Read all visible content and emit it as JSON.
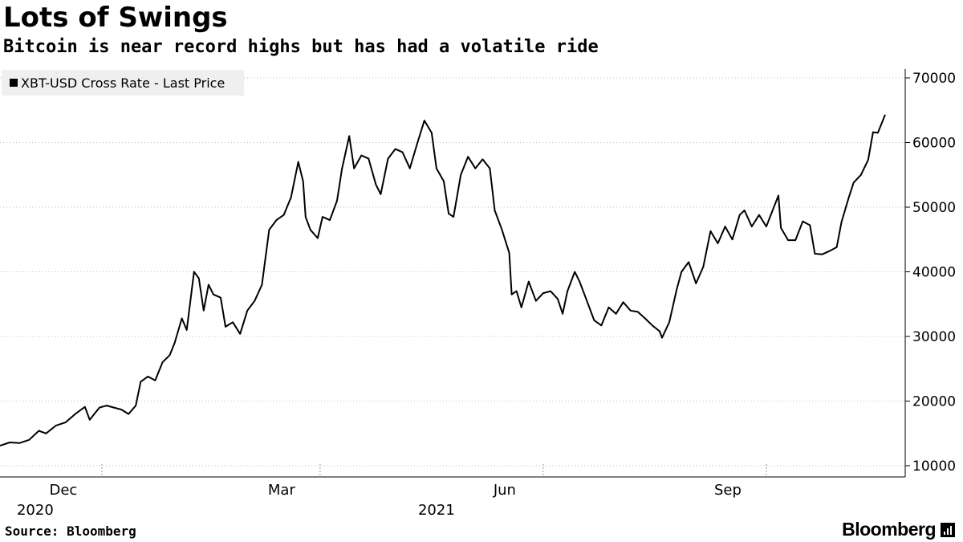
{
  "title": "Lots of Swings",
  "subtitle": "Bitcoin is near record highs but has had a volatile ride",
  "source": "Source: Bloomberg",
  "brand": "Bloomberg",
  "chart_data": {
    "type": "line",
    "legend": "XBT-USD Cross Rate - Last Price",
    "legend_position": "top-left",
    "y_axis_side": "right",
    "ylim": [
      10000,
      70000
    ],
    "y_ticks": [
      10000,
      20000,
      30000,
      40000,
      50000,
      60000,
      70000
    ],
    "x_tick_labels": [
      "Dec",
      "Mar",
      "Jun",
      "Sep"
    ],
    "x_tick_dates": [
      "2020-12-01",
      "2021-03-01",
      "2021-06-01",
      "2021-09-01"
    ],
    "year_labels": [
      {
        "label": "2020",
        "date": "2020-11-30"
      },
      {
        "label": "2021",
        "date": "2021-03-01"
      }
    ],
    "x_range": [
      "2020-10-20",
      "2021-10-20"
    ],
    "grid": "horizontal dotted",
    "series": [
      {
        "color": "#000000",
        "points": [
          [
            "2020-10-20",
            13100
          ],
          [
            "2020-10-24",
            13600
          ],
          [
            "2020-10-28",
            13500
          ],
          [
            "2020-11-01",
            14000
          ],
          [
            "2020-11-05",
            15400
          ],
          [
            "2020-11-08",
            15000
          ],
          [
            "2020-11-12",
            16200
          ],
          [
            "2020-11-16",
            16700
          ],
          [
            "2020-11-20",
            18000
          ],
          [
            "2020-11-24",
            19100
          ],
          [
            "2020-11-26",
            17100
          ],
          [
            "2020-11-30",
            19000
          ],
          [
            "2020-12-03",
            19300
          ],
          [
            "2020-12-06",
            19000
          ],
          [
            "2020-12-09",
            18700
          ],
          [
            "2020-12-12",
            18000
          ],
          [
            "2020-12-15",
            19300
          ],
          [
            "2020-12-17",
            23000
          ],
          [
            "2020-12-20",
            23800
          ],
          [
            "2020-12-23",
            23200
          ],
          [
            "2020-12-26",
            26000
          ],
          [
            "2020-12-29",
            27100
          ],
          [
            "2020-12-31",
            29000
          ],
          [
            "2021-01-03",
            32800
          ],
          [
            "2021-01-05",
            31000
          ],
          [
            "2021-01-08",
            40000
          ],
          [
            "2021-01-10",
            39000
          ],
          [
            "2021-01-12",
            34000
          ],
          [
            "2021-01-14",
            38000
          ],
          [
            "2021-01-16",
            36500
          ],
          [
            "2021-01-19",
            36000
          ],
          [
            "2021-01-21",
            31500
          ],
          [
            "2021-01-24",
            32200
          ],
          [
            "2021-01-27",
            30400
          ],
          [
            "2021-01-30",
            34000
          ],
          [
            "2021-02-02",
            35500
          ],
          [
            "2021-02-05",
            38000
          ],
          [
            "2021-02-08",
            46500
          ],
          [
            "2021-02-11",
            48000
          ],
          [
            "2021-02-14",
            48800
          ],
          [
            "2021-02-17",
            51500
          ],
          [
            "2021-02-20",
            57000
          ],
          [
            "2021-02-22",
            54000
          ],
          [
            "2021-02-23",
            48500
          ],
          [
            "2021-02-25",
            46500
          ],
          [
            "2021-02-28",
            45200
          ],
          [
            "2021-03-02",
            48500
          ],
          [
            "2021-03-05",
            48000
          ],
          [
            "2021-03-08",
            51000
          ],
          [
            "2021-03-10",
            55900
          ],
          [
            "2021-03-13",
            61000
          ],
          [
            "2021-03-15",
            56000
          ],
          [
            "2021-03-18",
            58000
          ],
          [
            "2021-03-21",
            57500
          ],
          [
            "2021-03-24",
            53500
          ],
          [
            "2021-03-26",
            52000
          ],
          [
            "2021-03-29",
            57500
          ],
          [
            "2021-04-01",
            59000
          ],
          [
            "2021-04-04",
            58500
          ],
          [
            "2021-04-07",
            56000
          ],
          [
            "2021-04-10",
            59800
          ],
          [
            "2021-04-13",
            63400
          ],
          [
            "2021-04-16",
            61500
          ],
          [
            "2021-04-18",
            56000
          ],
          [
            "2021-04-21",
            54000
          ],
          [
            "2021-04-23",
            49000
          ],
          [
            "2021-04-25",
            48500
          ],
          [
            "2021-04-28",
            55000
          ],
          [
            "2021-05-01",
            57800
          ],
          [
            "2021-05-04",
            56000
          ],
          [
            "2021-05-07",
            57400
          ],
          [
            "2021-05-10",
            56000
          ],
          [
            "2021-05-12",
            49500
          ],
          [
            "2021-05-15",
            46500
          ],
          [
            "2021-05-18",
            42900
          ],
          [
            "2021-05-19",
            36500
          ],
          [
            "2021-05-21",
            37000
          ],
          [
            "2021-05-23",
            34500
          ],
          [
            "2021-05-26",
            38500
          ],
          [
            "2021-05-29",
            35500
          ],
          [
            "2021-06-01",
            36700
          ],
          [
            "2021-06-04",
            37000
          ],
          [
            "2021-06-07",
            35800
          ],
          [
            "2021-06-09",
            33500
          ],
          [
            "2021-06-11",
            37000
          ],
          [
            "2021-06-14",
            40000
          ],
          [
            "2021-06-16",
            38500
          ],
          [
            "2021-06-19",
            35500
          ],
          [
            "2021-06-22",
            32500
          ],
          [
            "2021-06-25",
            31700
          ],
          [
            "2021-06-28",
            34500
          ],
          [
            "2021-07-01",
            33500
          ],
          [
            "2021-07-04",
            35300
          ],
          [
            "2021-07-07",
            34000
          ],
          [
            "2021-07-10",
            33800
          ],
          [
            "2021-07-13",
            32800
          ],
          [
            "2021-07-16",
            31700
          ],
          [
            "2021-07-19",
            30800
          ],
          [
            "2021-07-20",
            29800
          ],
          [
            "2021-07-23",
            32200
          ],
          [
            "2021-07-26",
            37200
          ],
          [
            "2021-07-28",
            40000
          ],
          [
            "2021-07-31",
            41500
          ],
          [
            "2021-08-03",
            38200
          ],
          [
            "2021-08-06",
            40800
          ],
          [
            "2021-08-09",
            46300
          ],
          [
            "2021-08-12",
            44400
          ],
          [
            "2021-08-15",
            47000
          ],
          [
            "2021-08-18",
            45000
          ],
          [
            "2021-08-21",
            48800
          ],
          [
            "2021-08-23",
            49500
          ],
          [
            "2021-08-26",
            47000
          ],
          [
            "2021-08-29",
            48800
          ],
          [
            "2021-09-01",
            47000
          ],
          [
            "2021-09-04",
            49900
          ],
          [
            "2021-09-06",
            51800
          ],
          [
            "2021-09-07",
            46800
          ],
          [
            "2021-09-10",
            44900
          ],
          [
            "2021-09-13",
            44900
          ],
          [
            "2021-09-16",
            47800
          ],
          [
            "2021-09-19",
            47200
          ],
          [
            "2021-09-21",
            42800
          ],
          [
            "2021-09-24",
            42700
          ],
          [
            "2021-09-27",
            43200
          ],
          [
            "2021-09-30",
            43800
          ],
          [
            "2021-10-02",
            47700
          ],
          [
            "2021-10-05",
            51500
          ],
          [
            "2021-10-07",
            53800
          ],
          [
            "2021-10-10",
            55000
          ],
          [
            "2021-10-13",
            57300
          ],
          [
            "2021-10-15",
            61600
          ],
          [
            "2021-10-17",
            61500
          ],
          [
            "2021-10-20",
            64300
          ]
        ]
      }
    ]
  }
}
